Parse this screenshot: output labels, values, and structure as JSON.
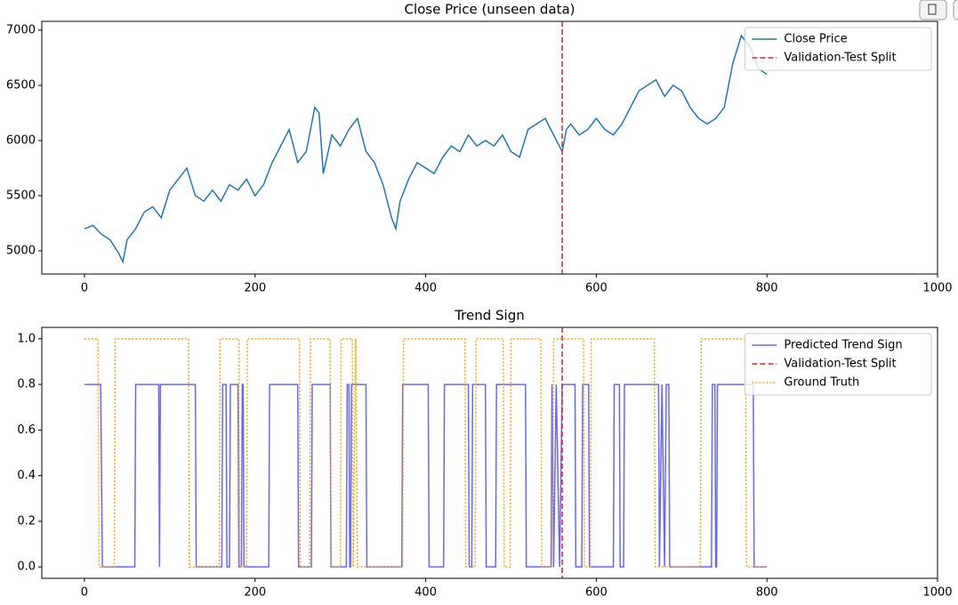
{
  "chart_data": [
    {
      "type": "line",
      "title": "Close Price (unseen data)",
      "xlim": [
        -50,
        1000
      ],
      "ylim": [
        4790,
        7080
      ],
      "xticks": [
        0,
        200,
        400,
        600,
        800,
        1000
      ],
      "yticks": [
        5000,
        5500,
        6000,
        6500,
        7000
      ],
      "legend": "upper right",
      "series": [
        {
          "name": "Close Price",
          "color": "#1f77b4",
          "style": "solid",
          "x": [
            0,
            10,
            20,
            30,
            40,
            45,
            50,
            60,
            70,
            80,
            90,
            100,
            110,
            120,
            130,
            140,
            150,
            160,
            170,
            180,
            190,
            200,
            210,
            220,
            230,
            240,
            250,
            260,
            270,
            275,
            280,
            290,
            300,
            310,
            320,
            330,
            340,
            350,
            360,
            365,
            370,
            380,
            390,
            400,
            410,
            420,
            430,
            440,
            450,
            460,
            470,
            480,
            490,
            500,
            510,
            520,
            530,
            540,
            550,
            560,
            565,
            570,
            580,
            590,
            600,
            610,
            620,
            630,
            640,
            650,
            660,
            670,
            680,
            690,
            700,
            710,
            720,
            730,
            740,
            750,
            760,
            770,
            780,
            790,
            800
          ],
          "values": [
            5200,
            5230,
            5150,
            5100,
            4980,
            4900,
            5100,
            5200,
            5350,
            5400,
            5300,
            5550,
            5650,
            5750,
            5500,
            5450,
            5550,
            5450,
            5600,
            5550,
            5650,
            5500,
            5600,
            5800,
            5950,
            6100,
            5800,
            5900,
            6300,
            6250,
            5700,
            6050,
            5950,
            6100,
            6200,
            5900,
            5800,
            5600,
            5300,
            5200,
            5450,
            5650,
            5800,
            5750,
            5700,
            5850,
            5950,
            5900,
            6050,
            5950,
            6000,
            5950,
            6050,
            5900,
            5850,
            6100,
            6150,
            6200,
            6050,
            5900,
            6100,
            6150,
            6050,
            6100,
            6200,
            6100,
            6050,
            6150,
            6300,
            6450,
            6500,
            6550,
            6400,
            6500,
            6450,
            6300,
            6200,
            6150,
            6200,
            6300,
            6700,
            6950,
            6850,
            6650,
            6600
          ]
        },
        {
          "name": "Validation-Test Split",
          "color": "#d62728",
          "style": "dashed",
          "vline": 560
        }
      ]
    },
    {
      "type": "line",
      "title": "Trend Sign",
      "xlim": [
        -50,
        1000
      ],
      "ylim": [
        -0.05,
        1.05
      ],
      "xticks": [
        0,
        200,
        400,
        600,
        800,
        1000
      ],
      "yticks": [
        {
          "value": 0,
          "label": "0.0"
        },
        0.2,
        0.4,
        0.6,
        0.8,
        {
          "value": 1,
          "label": "1.0"
        }
      ],
      "legend": "upper right",
      "series": [
        {
          "name": "Predicted Trend Sign",
          "color": "#0000ff",
          "alpha": 0.6,
          "style": "solid",
          "x": [
            0,
            19,
            21,
            59,
            60,
            87,
            88,
            89,
            130,
            131,
            161,
            162,
            166,
            167,
            170,
            171,
            180,
            181,
            184,
            185,
            186,
            187,
            216,
            217,
            250,
            251,
            266,
            267,
            288,
            289,
            307,
            308,
            310,
            311,
            312,
            313,
            330,
            331,
            372,
            373,
            403,
            404,
            421,
            422,
            450,
            451,
            454,
            455,
            470,
            471,
            482,
            483,
            517,
            518,
            547,
            548,
            550,
            553,
            557,
            560,
            575,
            576,
            583,
            584,
            591,
            592,
            620,
            621,
            627,
            628,
            632,
            633,
            673,
            674,
            677,
            680,
            682,
            685,
            686,
            735,
            736,
            739,
            740,
            741,
            742,
            784,
            785,
            800
          ],
          "values": [
            0.8,
            0.8,
            0,
            0,
            0.8,
            0.8,
            0,
            0.8,
            0.8,
            0,
            0,
            0.8,
            0.8,
            0,
            0,
            0.8,
            0.8,
            0,
            0,
            0.8,
            0.8,
            0,
            0,
            0.8,
            0.8,
            0,
            0,
            0.8,
            0.8,
            0,
            0,
            0.8,
            0.8,
            0,
            0,
            0.8,
            0.8,
            0,
            0,
            0.8,
            0.8,
            0,
            0,
            0.8,
            0.8,
            0,
            0,
            0.8,
            0.8,
            0,
            0,
            0.8,
            0.8,
            0,
            0,
            0.8,
            0,
            0.8,
            0,
            0.8,
            0.8,
            0,
            0,
            0.8,
            0.8,
            0,
            0,
            0.8,
            0.8,
            0,
            0,
            0.8,
            0.8,
            0,
            0.8,
            0,
            0.8,
            0.8,
            0,
            0,
            0.8,
            0.8,
            0,
            0,
            0.8,
            0.8,
            0,
            0
          ]
        },
        {
          "name": "Validation-Test Split",
          "color": "#d62728",
          "style": "dashed",
          "vline": 560
        },
        {
          "name": "Ground Truth",
          "color": "#ffa500",
          "style": "dotted",
          "x": [
            0,
            16,
            17,
            35,
            36,
            122,
            123,
            158,
            159,
            181,
            182,
            190,
            191,
            252,
            253,
            264,
            265,
            288,
            289,
            300,
            301,
            314,
            315,
            318,
            320,
            373,
            374,
            446,
            447,
            458,
            459,
            491,
            492,
            499,
            500,
            535,
            536,
            549,
            550,
            585,
            586,
            593,
            594,
            668,
            669,
            722,
            723,
            775,
            776,
            800
          ],
          "values": [
            1,
            1,
            0,
            0,
            1,
            1,
            0,
            0,
            1,
            1,
            0,
            0,
            1,
            1,
            0,
            0,
            1,
            1,
            0,
            0,
            1,
            1,
            0,
            1,
            0,
            0,
            1,
            1,
            0,
            0,
            1,
            1,
            0,
            0,
            1,
            1,
            0,
            0,
            1,
            1,
            0,
            0,
            1,
            1,
            0,
            0,
            1,
            1,
            0,
            0
          ]
        }
      ]
    }
  ]
}
